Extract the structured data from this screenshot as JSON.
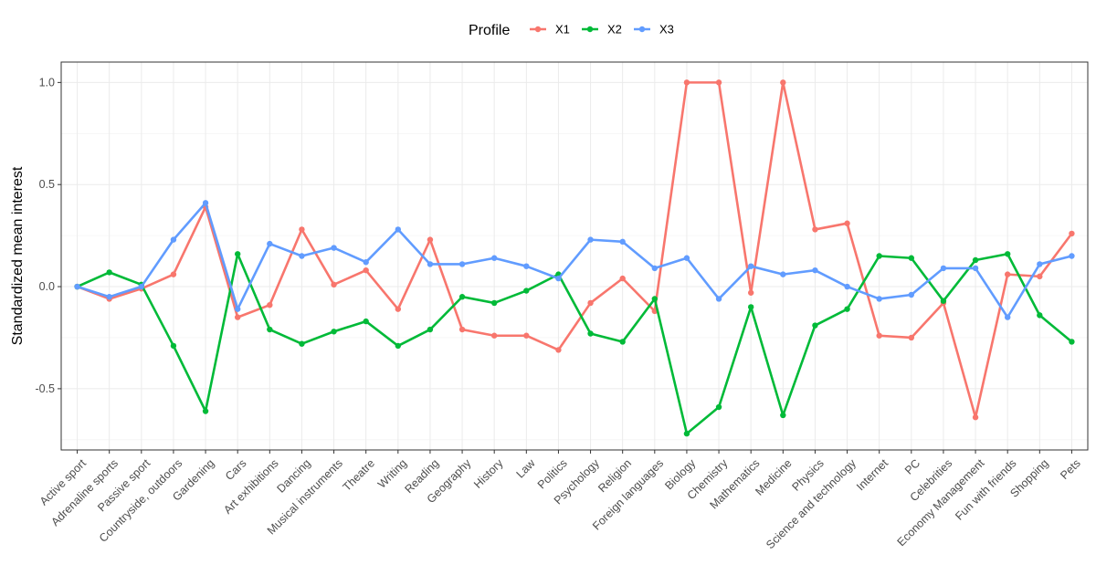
{
  "chart_data": {
    "type": "line",
    "xlabel": "",
    "ylabel": "Standardized mean interest",
    "ylim": [
      -0.8,
      1.1
    ],
    "yticks": [
      -0.5,
      0.0,
      0.5,
      1.0
    ],
    "ytick_labels": [
      "-0.5",
      "0.0",
      "0.5",
      "1.0"
    ],
    "grid": true,
    "legend": {
      "title": "Profile",
      "position": "top"
    },
    "categories": [
      "Active sport",
      "Adrenaline sports",
      "Passive sport",
      "Countryside, outdoors",
      "Gardening",
      "Cars",
      "Art exhibitions",
      "Dancing",
      "Musical instruments",
      "Theatre",
      "Writing",
      "Reading",
      "Geography",
      "History",
      "Law",
      "Politics",
      "Psychology",
      "Religion",
      "Foreign languages",
      "Biology",
      "Chemistry",
      "Mathematics",
      "Medicine",
      "Physics",
      "Science and technology",
      "Internet",
      "PC",
      "Celebrities",
      "Economy Management",
      "Fun with friends",
      "Shopping",
      "Pets"
    ],
    "series": [
      {
        "name": "X1",
        "color": "#F8766D",
        "values": [
          0.0,
          -0.06,
          -0.01,
          0.06,
          0.39,
          -0.15,
          -0.09,
          0.28,
          0.01,
          0.08,
          -0.11,
          0.23,
          -0.21,
          -0.24,
          -0.24,
          -0.31,
          -0.08,
          0.04,
          -0.12,
          1.0,
          1.0,
          -0.03,
          1.0,
          0.28,
          0.31,
          -0.24,
          -0.25,
          -0.08,
          -0.64,
          0.06,
          0.05,
          0.26
        ]
      },
      {
        "name": "X2",
        "color": "#00BA38",
        "values": [
          0.0,
          0.07,
          0.01,
          -0.29,
          -0.61,
          0.16,
          -0.21,
          -0.28,
          -0.22,
          -0.17,
          -0.29,
          -0.21,
          -0.05,
          -0.08,
          -0.02,
          0.06,
          -0.23,
          -0.27,
          -0.06,
          -0.72,
          -0.59,
          -0.1,
          -0.63,
          -0.19,
          -0.11,
          0.15,
          0.14,
          -0.07,
          0.13,
          0.16,
          -0.14,
          -0.27
        ]
      },
      {
        "name": "X3",
        "color": "#619CFF",
        "values": [
          0.0,
          -0.05,
          0.0,
          0.23,
          0.41,
          -0.11,
          0.21,
          0.15,
          0.19,
          0.12,
          0.28,
          0.11,
          0.11,
          0.14,
          0.1,
          0.04,
          0.23,
          0.22,
          0.09,
          0.14,
          -0.06,
          0.1,
          0.06,
          0.08,
          0.0,
          -0.06,
          -0.04,
          0.09,
          0.09,
          -0.15,
          0.11,
          0.15
        ]
      }
    ]
  }
}
